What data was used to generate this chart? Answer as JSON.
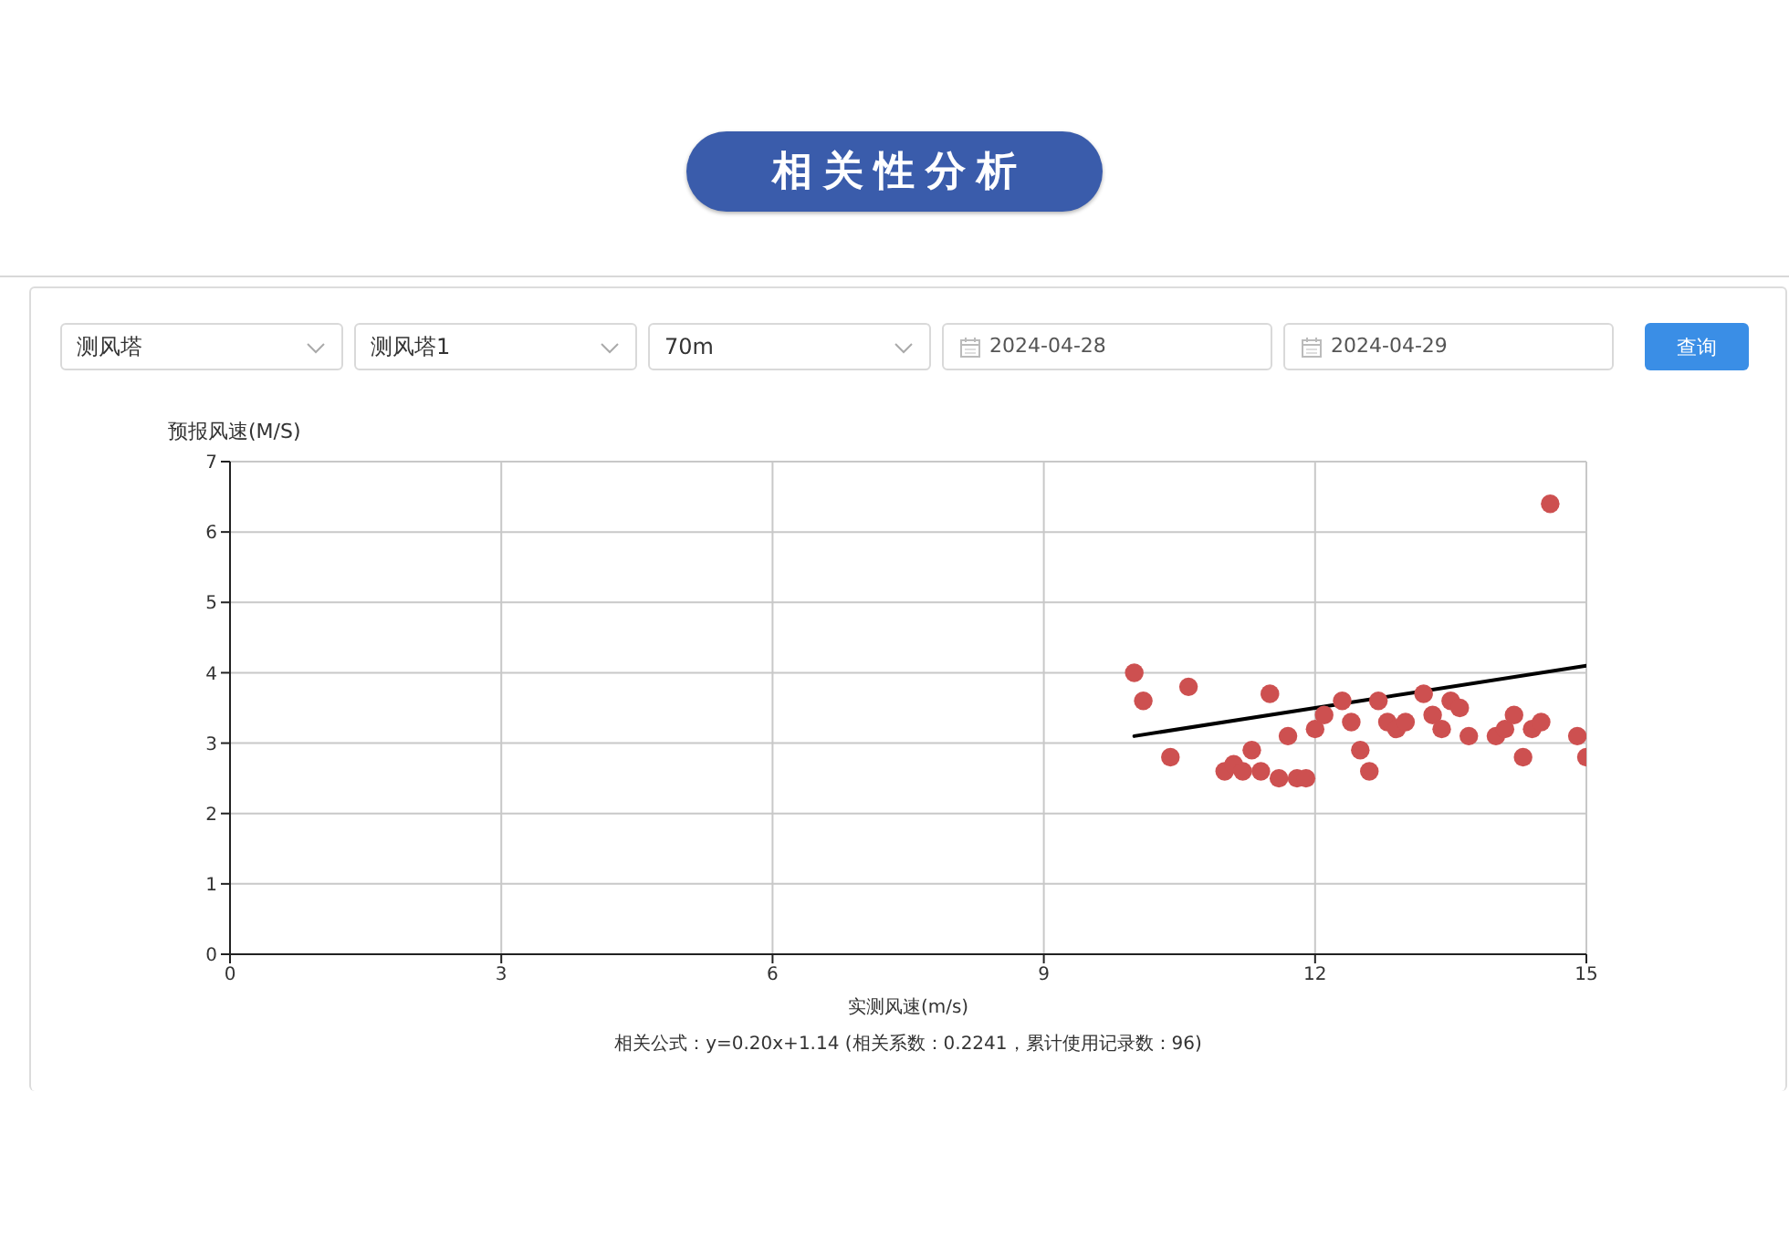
{
  "chart_data": {
    "type": "scatter",
    "title": "相关性分析",
    "xlabel": "实测风速(m/s)",
    "ylabel": "预报风速(M/S)",
    "annotations": [
      "测风塔",
      "测风塔1",
      "70m",
      "2024-04-28",
      "2024-04-29",
      "查询",
      "相关公式：y=0.20x+1.14 (相关系数：0.2241，累计使用记录数：96)"
    ],
    "x": [
      10.0,
      10.1,
      10.4,
      10.6,
      11.0,
      11.1,
      11.2,
      11.3,
      11.4,
      11.5,
      11.6,
      11.7,
      11.8,
      11.9,
      12.0,
      12.1,
      12.3,
      12.4,
      12.5,
      12.6,
      12.7,
      12.8,
      12.9,
      13.0,
      13.2,
      13.3,
      13.4,
      13.5,
      13.6,
      13.7,
      14.0,
      14.1,
      14.2,
      14.3,
      14.4,
      14.5,
      14.6,
      14.9,
      15.0
    ],
    "series": [
      {
        "color": "#cd5050",
        "marker": "circle",
        "values": [
          4.0,
          3.6,
          2.8,
          3.8,
          2.6,
          2.7,
          2.6,
          2.9,
          2.6,
          3.7,
          2.5,
          3.1,
          2.5,
          2.5,
          3.2,
          3.4,
          3.6,
          3.3,
          2.9,
          2.6,
          3.6,
          3.3,
          3.2,
          3.3,
          3.7,
          3.4,
          3.2,
          3.6,
          3.5,
          3.1,
          3.1,
          3.2,
          3.4,
          2.8,
          3.2,
          3.3,
          6.4,
          3.1,
          2.8
        ]
      },
      {
        "type": "line",
        "color": "#000000",
        "marker": "none",
        "x": [
          10,
          15
        ],
        "values": [
          3.1,
          4.1
        ]
      }
    ],
    "xlim": [
      0,
      15
    ],
    "xticks": [
      0,
      3,
      6,
      9,
      12,
      15
    ],
    "ylim": [
      0,
      7
    ],
    "yticks": [
      0,
      1,
      2,
      3,
      4,
      5,
      6,
      7
    ],
    "grid": true
  }
}
